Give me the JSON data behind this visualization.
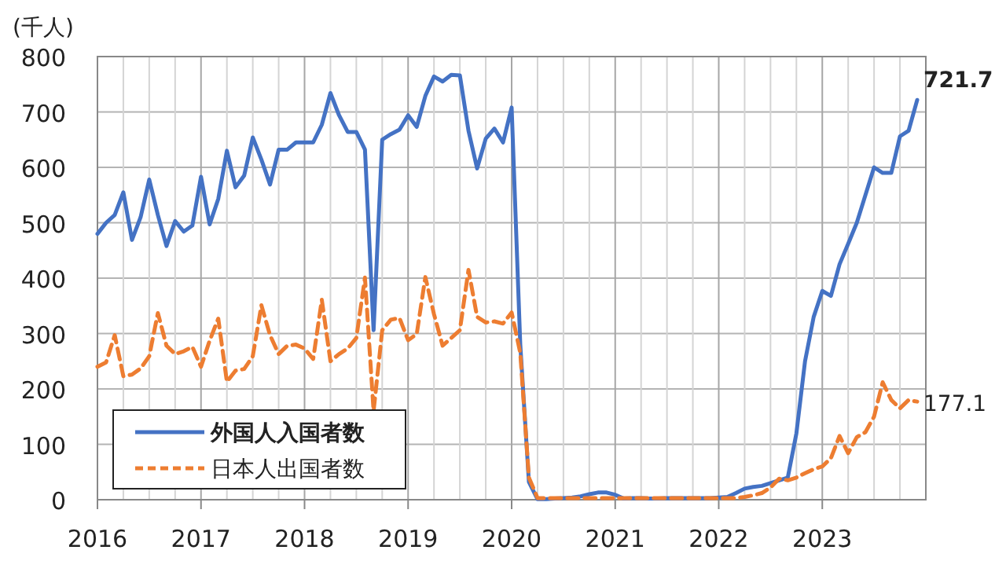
{
  "chart_data": {
    "type": "line",
    "ylabel": "(千人)",
    "xlim": [
      "2016-01",
      "2024-01"
    ],
    "ylim": [
      0,
      800
    ],
    "yticks": [
      0,
      100,
      200,
      300,
      400,
      500,
      600,
      700,
      800
    ],
    "xticks": [
      {
        "value": "2016-01",
        "label": "2016"
      },
      {
        "value": "2016-04",
        "label": null
      },
      {
        "value": "2016-07",
        "label": null
      },
      {
        "value": "2016-10",
        "label": null
      },
      {
        "value": "2017-01",
        "label": "2017"
      },
      {
        "value": "2017-04",
        "label": null
      },
      {
        "value": "2017-07",
        "label": null
      },
      {
        "value": "2017-10",
        "label": null
      },
      {
        "value": "2018-01",
        "label": "2018"
      },
      {
        "value": "2018-04",
        "label": null
      },
      {
        "value": "2018-07",
        "label": null
      },
      {
        "value": "2018-10",
        "label": null
      },
      {
        "value": "2019-01",
        "label": "2019"
      },
      {
        "value": "2019-04",
        "label": null
      },
      {
        "value": "2019-07",
        "label": null
      },
      {
        "value": "2019-10",
        "label": null
      },
      {
        "value": "2020-01",
        "label": "2020"
      },
      {
        "value": "2020-04",
        "label": null
      },
      {
        "value": "2020-07",
        "label": null
      },
      {
        "value": "2020-10",
        "label": null
      },
      {
        "value": "2021-01",
        "label": "2021"
      },
      {
        "value": "2021-04",
        "label": null
      },
      {
        "value": "2021-07",
        "label": null
      },
      {
        "value": "2021-10",
        "label": null
      },
      {
        "value": "2022-01",
        "label": "2022"
      },
      {
        "value": "2022-04",
        "label": null
      },
      {
        "value": "2022-07",
        "label": null
      },
      {
        "value": "2022-10",
        "label": null
      },
      {
        "value": "2023-01",
        "label": "2023"
      },
      {
        "value": "2023-04",
        "label": null
      },
      {
        "value": "2023-07",
        "label": null
      },
      {
        "value": "2023-10",
        "label": null
      }
    ],
    "grid": true,
    "legend": "bottom left",
    "marker": "none",
    "x": [
      "2016-01",
      "2016-02",
      "2016-03",
      "2016-04",
      "2016-05",
      "2016-06",
      "2016-07",
      "2016-08",
      "2016-09",
      "2016-10",
      "2016-11",
      "2016-12",
      "2017-01",
      "2017-02",
      "2017-03",
      "2017-04",
      "2017-05",
      "2017-06",
      "2017-07",
      "2017-08",
      "2017-09",
      "2017-10",
      "2017-11",
      "2017-12",
      "2018-01",
      "2018-02",
      "2018-03",
      "2018-04",
      "2018-05",
      "2018-06",
      "2018-07",
      "2018-08",
      "2018-09",
      "2018-10",
      "2018-11",
      "2018-12",
      "2019-01",
      "2019-02",
      "2019-03",
      "2019-04",
      "2019-05",
      "2019-06",
      "2019-07",
      "2019-08",
      "2019-09",
      "2019-10",
      "2019-11",
      "2019-12",
      "2020-01",
      "2020-02",
      "2020-03",
      "2020-04",
      "2020-05",
      "2020-06",
      "2020-07",
      "2020-08",
      "2020-09",
      "2020-10",
      "2020-11",
      "2020-12",
      "2021-01",
      "2021-02",
      "2021-03",
      "2021-04",
      "2021-05",
      "2021-06",
      "2021-07",
      "2021-08",
      "2021-09",
      "2021-10",
      "2021-11",
      "2021-12",
      "2022-01",
      "2022-02",
      "2022-03",
      "2022-04",
      "2022-05",
      "2022-06",
      "2022-07",
      "2022-08",
      "2022-09",
      "2022-10",
      "2022-11",
      "2022-12",
      "2023-01",
      "2023-02",
      "2023-03",
      "2023-04",
      "2023-05",
      "2023-06",
      "2023-07",
      "2023-08",
      "2023-09",
      "2023-10",
      "2023-11",
      "2023-12"
    ],
    "series": [
      {
        "name": "外国人入国者数",
        "color": "#4472c4",
        "line_style": "solid",
        "values": [
          480,
          500,
          514,
          555,
          469,
          510,
          578,
          514,
          458,
          503,
          484,
          495,
          583,
          497,
          543,
          630,
          564,
          585,
          654,
          614,
          569,
          632,
          632,
          645,
          645,
          645,
          677,
          734,
          694,
          664,
          664,
          632,
          306,
          650,
          660,
          668,
          694,
          673,
          729,
          764,
          755,
          767,
          766,
          666,
          598,
          652,
          670,
          645,
          708,
          280,
          32,
          1,
          1,
          2,
          3,
          4,
          6,
          10,
          13,
          13,
          9,
          2,
          3,
          3,
          2,
          2,
          3,
          3,
          3,
          3,
          3,
          3,
          4,
          5,
          12,
          20,
          23,
          25,
          30,
          35,
          40,
          120,
          250,
          330,
          377,
          368,
          425,
          462,
          500,
          550,
          600,
          590,
          590,
          656,
          666,
          721.7
        ]
      },
      {
        "name": "日本人出国者数",
        "color": "#ed7d31",
        "line_style": "dashed",
        "values": [
          240,
          248,
          297,
          223,
          226,
          237,
          259,
          337,
          278,
          263,
          268,
          276,
          240,
          287,
          327,
          213,
          233,
          236,
          259,
          351,
          297,
          263,
          278,
          280,
          273,
          254,
          361,
          250,
          263,
          273,
          292,
          401,
          160,
          306,
          325,
          328,
          288,
          299,
          402,
          335,
          278,
          292,
          306,
          415,
          330,
          320,
          322,
          318,
          338,
          265,
          40,
          3,
          3,
          3,
          3,
          3,
          3,
          3,
          3,
          3,
          3,
          3,
          3,
          3,
          3,
          3,
          3,
          3,
          3,
          3,
          3,
          3,
          3,
          3,
          3,
          5,
          8,
          12,
          22,
          38,
          35,
          40,
          48,
          55,
          60,
          75,
          115,
          84,
          113,
          122,
          150,
          212,
          180,
          165,
          180,
          177.1
        ]
      }
    ],
    "annotations": [
      {
        "text": "721.7",
        "x": "2023-12",
        "y": 721.7
      },
      {
        "text": "177.1",
        "x": "2023-12",
        "y": 177.1
      }
    ]
  }
}
